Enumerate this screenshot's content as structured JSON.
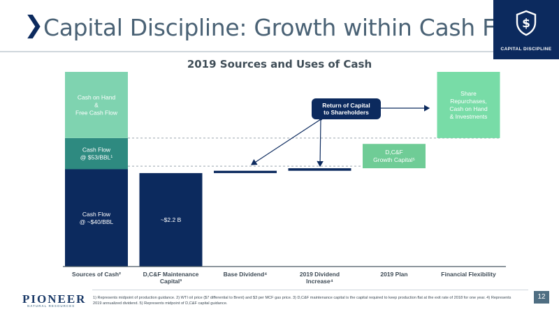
{
  "header": {
    "chevron": "❯",
    "title": "Capital Discipline: Growth within Cash Flow",
    "badge_label": "CAPITAL DISCIPLINE",
    "badge_icon": "shield-dollar-icon"
  },
  "colors": {
    "navy": "#0c2a5e",
    "teal": "#2e8a80",
    "mint": "#7fd3b0",
    "light_green": "#6fcc96",
    "pale_mint": "#78dca7"
  },
  "chart_data": {
    "type": "waterfall",
    "title": "2019 Sources and Uses of Cash",
    "categories": [
      "Sources of Cash²",
      "D,C&F Maintenance Capital³",
      "Base Dividend⁴",
      "2019 Dividend Increase⁴",
      "2019 Plan",
      "Financial Flexibility"
    ],
    "category_lines": [
      [
        "Sources of Cash²"
      ],
      [
        "D,C&F Maintenance",
        "Capital³"
      ],
      [
        "Base Dividend⁴"
      ],
      [
        "2019 Dividend",
        "Increase⁴"
      ],
      [
        "2019 Plan"
      ],
      [
        "Financial Flexibility"
      ]
    ],
    "segments": [
      {
        "category": 0,
        "bottom": 0,
        "top": 0.5,
        "color": "#0c2a5e",
        "lines": [
          "Cash Flow",
          "@ ~$40/BBL"
        ],
        "text_color": "#ffffff"
      },
      {
        "category": 0,
        "bottom": 0.5,
        "top": 0.66,
        "color": "#2e8a80",
        "lines": [
          "Cash Flow",
          "@ $53/BBL¹"
        ],
        "text_color": "#ffffff"
      },
      {
        "category": 0,
        "bottom": 0.66,
        "top": 1.0,
        "color": "#7fd3b0",
        "lines": [
          "Cash on Hand",
          "&",
          "Free Cash Flow"
        ],
        "text_color": "#ffffff"
      },
      {
        "category": 1,
        "bottom": 0,
        "top": 0.48,
        "color": "#0c2a5e",
        "lines": [
          "~$2.2 B"
        ],
        "text_color": "#ffffff"
      },
      {
        "category": 2,
        "bottom": 0.48,
        "top": 0.492,
        "color": "#0c2a5e",
        "lines": [],
        "text_color": "#ffffff"
      },
      {
        "category": 3,
        "bottom": 0.492,
        "top": 0.505,
        "color": "#0c2a5e",
        "lines": [],
        "text_color": "#ffffff"
      },
      {
        "category": 4,
        "bottom": 0.505,
        "top": 0.63,
        "color": "#6fcc96",
        "lines": [
          "D,C&F",
          "Growth Capital⁵"
        ],
        "text_color": "#ffffff"
      },
      {
        "category": 5,
        "bottom": 0.66,
        "top": 1.0,
        "color": "#78dca7",
        "lines": [
          "Share",
          "Repurchases,",
          "Cash on Hand",
          "& Investments"
        ],
        "text_color": "#ffffff"
      }
    ],
    "reference_lines": [
      0.505,
      0.66
    ],
    "callout": {
      "lines": [
        "Return of Capital",
        "to Shareholders"
      ],
      "color": "#0c2a5e"
    }
  },
  "footer": {
    "logo_main": "PIONEER",
    "logo_sub": "NATURAL RESOURCES",
    "footnote": "1) Represents midpoint of production guidance.  2) WTI oil price ($7 differential to Brent) and $3 per MCF gas price.  3) D,C&F maintenance capital is the capital required to keep production flat at the exit rate of 2018 for one year.  4) Represents 2019 annualized dividend.  5) Represents midpoint of D,C&F capital guidance.",
    "page": "12"
  }
}
